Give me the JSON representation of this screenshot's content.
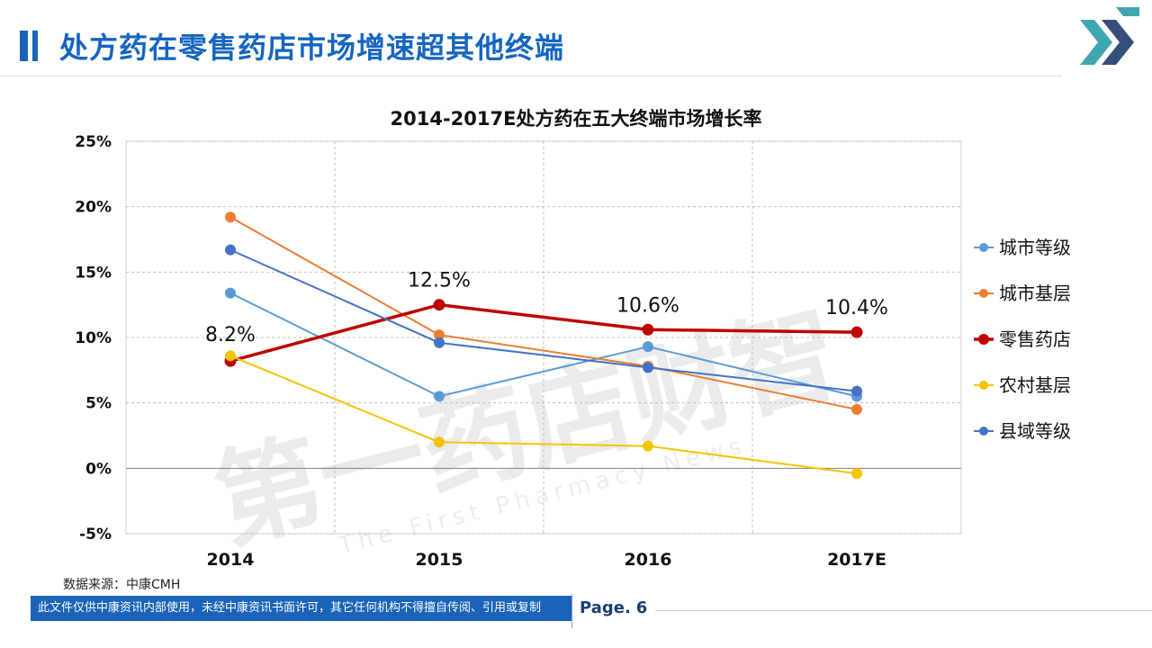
{
  "page": {
    "title": "处方药在零售药店市场增速超其他终端",
    "source": "数据来源：中康CMH",
    "footer_note": "此文件仅供中康资讯内部使用，未经中康资讯书面许可，其它任何机构不得擅自传阅、引用或复制",
    "page_label": "Page.",
    "page_number": "6"
  },
  "colors": {
    "brand": "#1a63b8",
    "logo_teal": "#3fa7b0",
    "logo_navy": "#1f3b6b"
  },
  "chart_data": {
    "type": "line",
    "title": "2014-2017E处方药在五大终端市场增长率",
    "categories": [
      "2014",
      "2015",
      "2016",
      "2017E"
    ],
    "ylim": [
      -0.05,
      0.25
    ],
    "yticks": [
      0.25,
      0.2,
      0.15,
      0.1,
      0.05,
      0.0,
      -0.05
    ],
    "ytick_labels": [
      "25%",
      "20%",
      "15%",
      "10%",
      "5%",
      "0%",
      "-5%"
    ],
    "legend_position": "right",
    "series": [
      {
        "name": "城市等级",
        "color": "#5b9bd5",
        "width": 2,
        "values": [
          0.134,
          0.055,
          0.093,
          0.055
        ]
      },
      {
        "name": "城市基层",
        "color": "#ed7d31",
        "width": 2,
        "values": [
          0.192,
          0.102,
          0.078,
          0.045
        ]
      },
      {
        "name": "零售药店",
        "color": "#c00000",
        "width": 3.5,
        "values": [
          0.082,
          0.125,
          0.106,
          0.104
        ],
        "labels": [
          "8.2%",
          "12.5%",
          "10.6%",
          "10.4%"
        ]
      },
      {
        "name": "农村基层",
        "color": "#f5c400",
        "width": 2,
        "values": [
          0.086,
          0.02,
          0.017,
          -0.004
        ]
      },
      {
        "name": "县域等级",
        "color": "#4472c4",
        "width": 2,
        "values": [
          0.167,
          0.096,
          0.077,
          0.059
        ]
      }
    ]
  }
}
